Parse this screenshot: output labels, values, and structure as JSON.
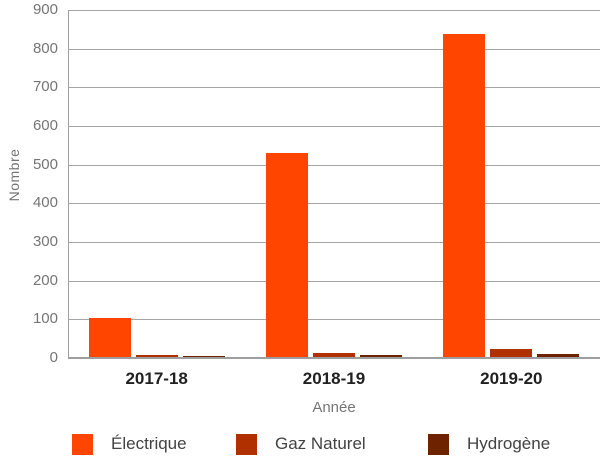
{
  "chart_data": {
    "type": "bar",
    "title": "",
    "categories": [
      "2017-18",
      "2018-19",
      "2019-20"
    ],
    "series": [
      {
        "name": "Électrique",
        "color": "#ff4500",
        "values": [
          103,
          530,
          838
        ]
      },
      {
        "name": "Gaz Naturel",
        "color": "#b13000",
        "values": [
          8,
          13,
          23
        ]
      },
      {
        "name": "Hydrogène",
        "color": "#6e2200",
        "values": [
          4,
          7,
          10
        ]
      }
    ],
    "xlabel": "Année",
    "ylabel": "Nombre",
    "ylim": [
      0,
      900
    ],
    "yticks": [
      0,
      100,
      200,
      300,
      400,
      500,
      600,
      700,
      800,
      900
    ],
    "grid": true,
    "legend_position": "bottom",
    "axis_colors": {
      "grid": "#a6a6a6",
      "axis_line": "#9e9e9e",
      "tick_label": "#757575",
      "category_label": "#212121",
      "legend_label": "#424242"
    }
  }
}
